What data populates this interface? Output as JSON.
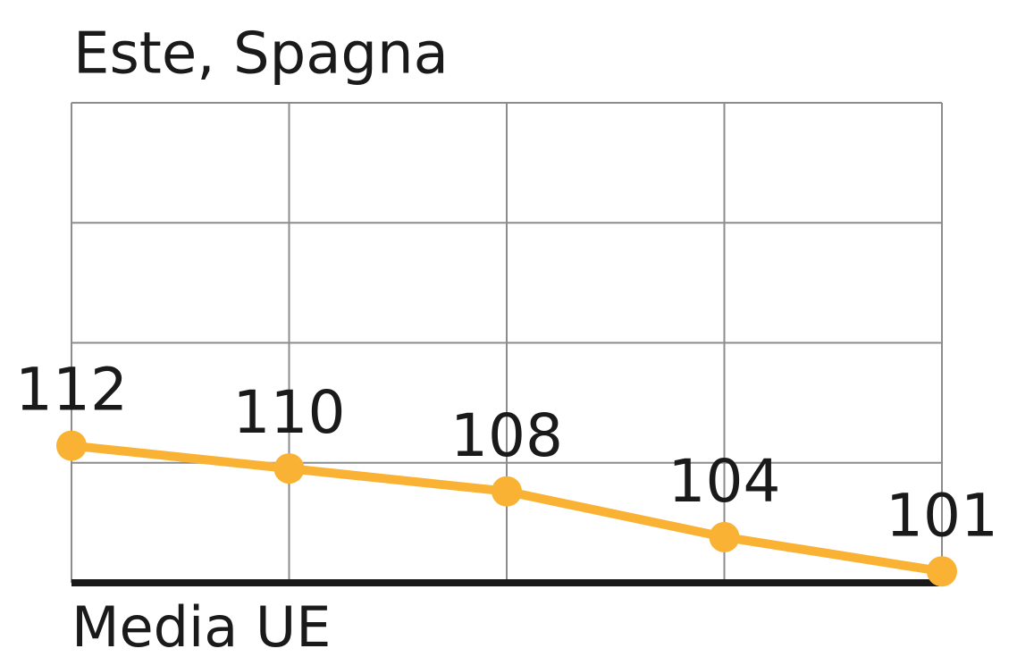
{
  "chart_data": {
    "type": "line",
    "title": "Este, Spagna",
    "baseline_label": "Media UE",
    "categories": [
      null,
      null,
      null,
      null,
      null
    ],
    "series": [
      {
        "color": "#f9b233",
        "values": [
          112,
          110,
          108,
          104,
          101
        ]
      }
    ],
    "ylim": [
      100,
      142
    ],
    "grid": true
  }
}
